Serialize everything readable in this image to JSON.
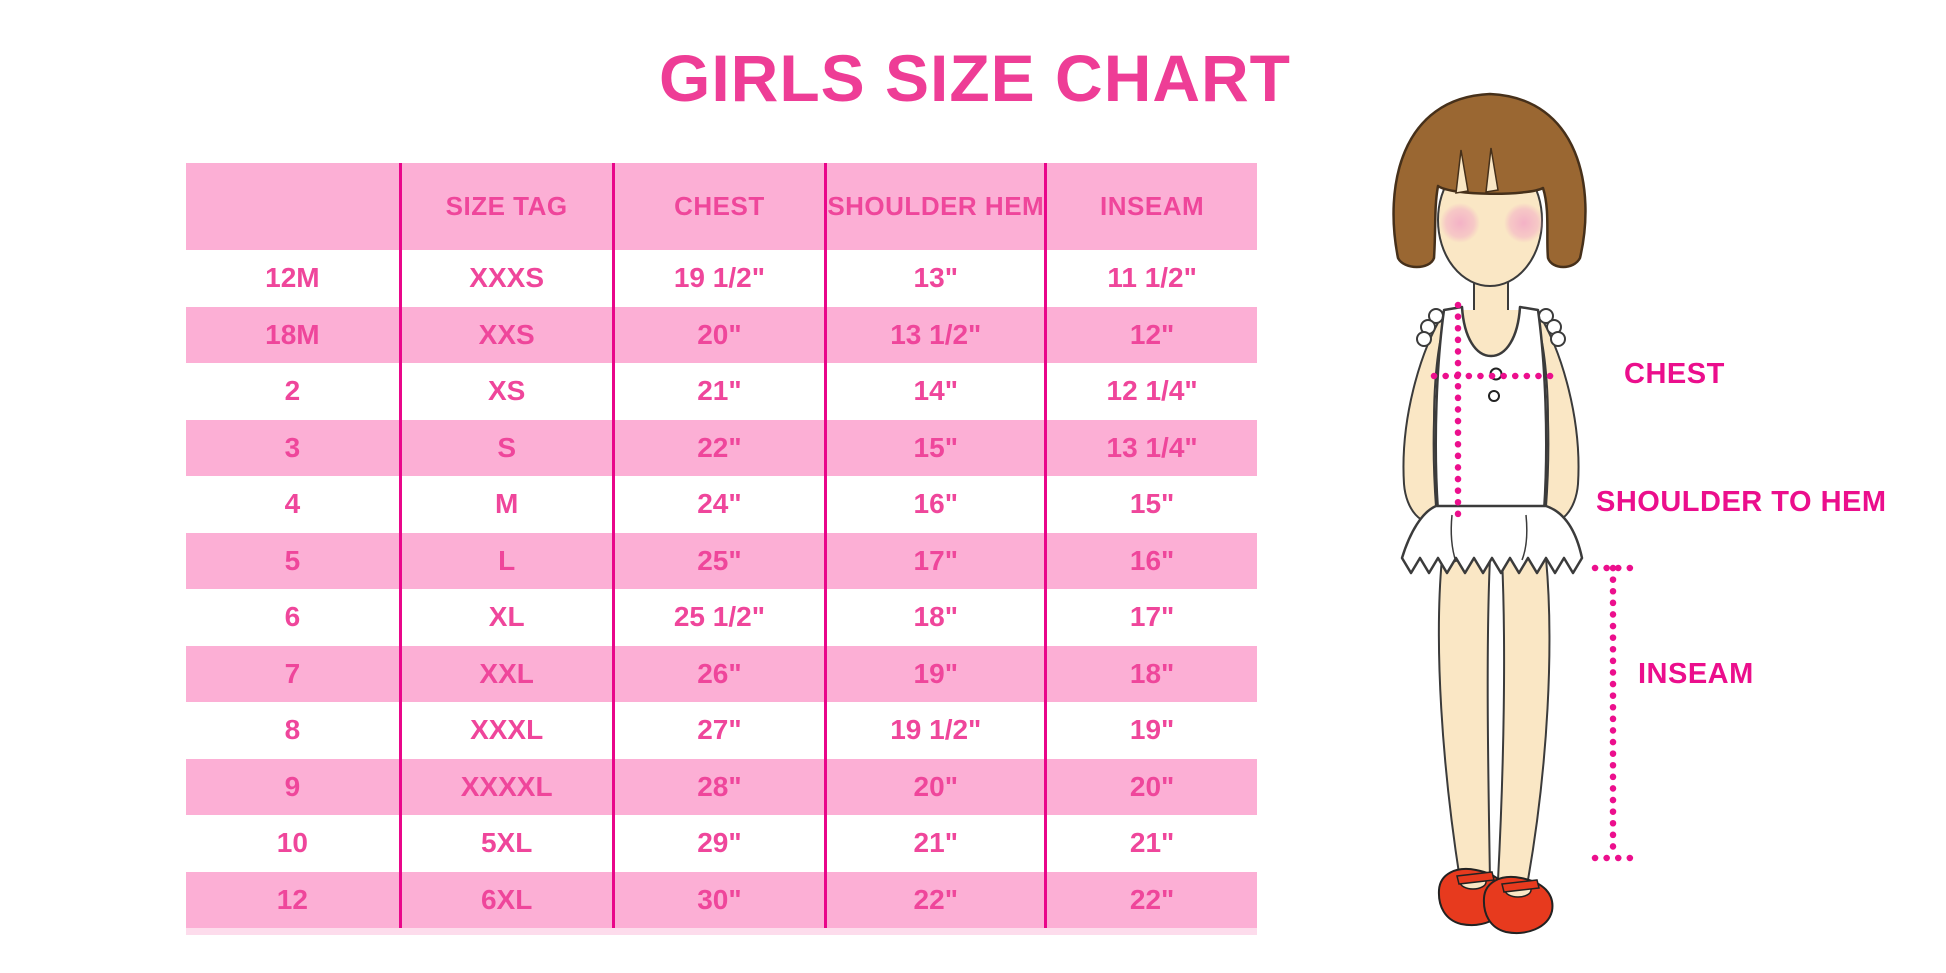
{
  "title": "GIRLS SIZE CHART",
  "chart_data": {
    "type": "table",
    "title": "GIRLS SIZE CHART",
    "columns": [
      "",
      "SIZE TAG",
      "CHEST",
      "SHOULDER HEM",
      "INSEAM"
    ],
    "rows": [
      [
        "12M",
        "XXXS",
        "19 1/2\"",
        "13\"",
        "11 1/2\""
      ],
      [
        "18M",
        "XXS",
        "20\"",
        "13 1/2\"",
        "12\""
      ],
      [
        "2",
        "XS",
        "21\"",
        "14\"",
        "12 1/4\""
      ],
      [
        "3",
        "S",
        "22\"",
        "15\"",
        "13 1/4\""
      ],
      [
        "4",
        "M",
        "24\"",
        "16\"",
        "15\""
      ],
      [
        "5",
        "L",
        "25\"",
        "17\"",
        "16\""
      ],
      [
        "6",
        "XL",
        "25 1/2\"",
        "18\"",
        "17\""
      ],
      [
        "7",
        "XXL",
        "26\"",
        "19\"",
        "18\""
      ],
      [
        "8",
        "XXXL",
        "27\"",
        "19 1/2\"",
        "19\""
      ],
      [
        "9",
        "XXXXL",
        "28\"",
        "20\"",
        "20\""
      ],
      [
        "10",
        "5XL",
        "29\"",
        "21\"",
        "21\""
      ],
      [
        "12",
        "6XL",
        "30\"",
        "22\"",
        "22\""
      ]
    ],
    "layout": {
      "striping": "header and alternating rows in light pink, others white",
      "grid": "magenta vertical column dividers only, no horizontal lines"
    }
  },
  "figure": {
    "chest_label": "CHEST",
    "shoulder_to_hem_label": "SHOULDER TO HEM",
    "inseam_label": "INSEAM"
  },
  "colors": {
    "title": "#EE3D96",
    "row_band": "#FCAFD5",
    "divider": "#E9068A",
    "table_text": "#EF469B",
    "measure_label": "#EB0E8C",
    "measure_dots": "#EC0F8D",
    "hair": "#9A6732",
    "skin": "#FAE7C5",
    "blush": "#F3AFC6",
    "shoe": "#E73A1E"
  }
}
